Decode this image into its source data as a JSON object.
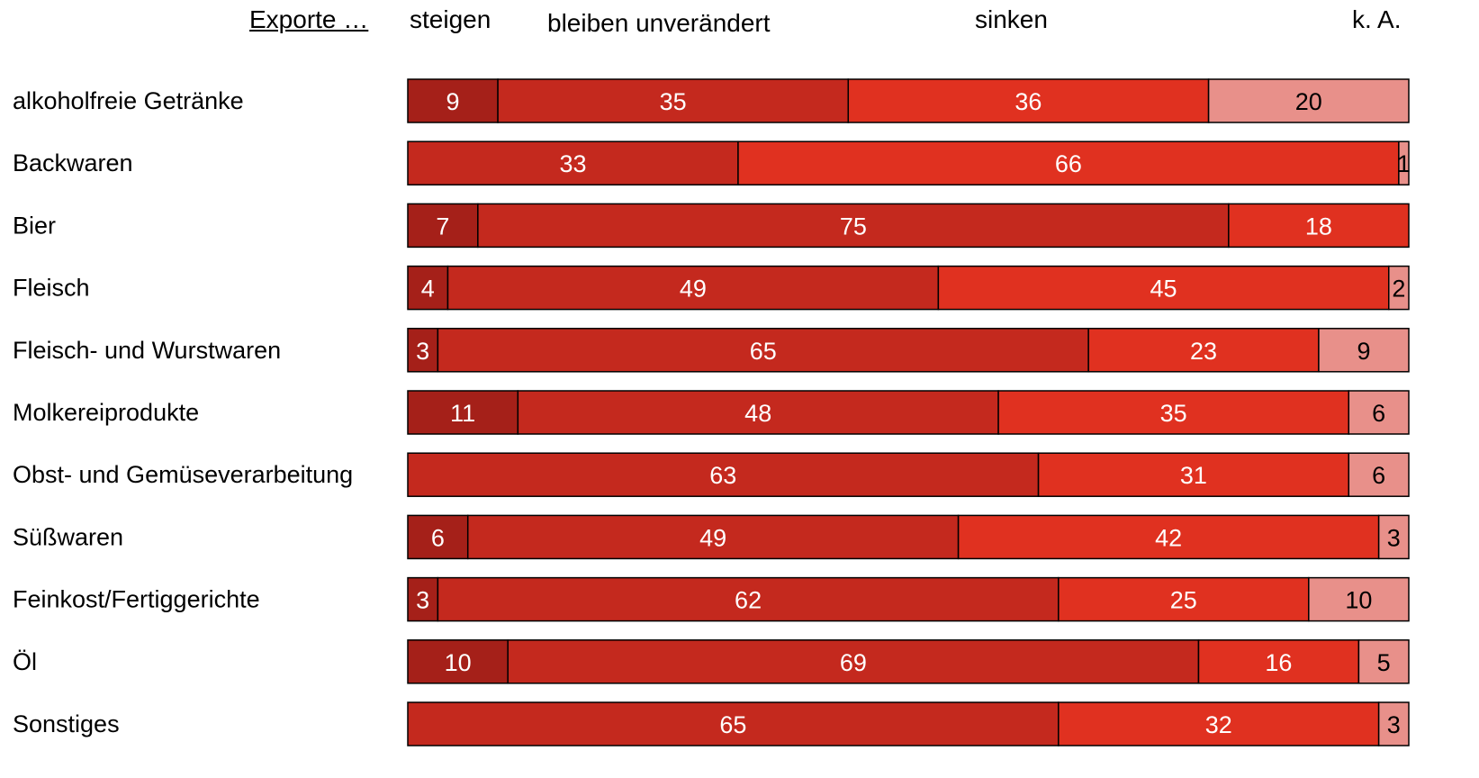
{
  "chart_data": {
    "type": "bar",
    "orientation": "horizontal",
    "stacked": true,
    "header_title": "Exporte …",
    "legend": [
      {
        "name": "steigen",
        "color": "#a52019"
      },
      {
        "name": "bleiben unverändert",
        "color": "#c4291e"
      },
      {
        "name": "sinken",
        "color": "#e03120"
      },
      {
        "name": "k. A.",
        "color": "#e8908a"
      }
    ],
    "categories": [
      "alkoholfreie Getränke",
      "Backwaren",
      "Bier",
      "Fleisch",
      "Fleisch- und Wurstwaren",
      "Molkereiprodukte",
      "Obst- und Gemüseverarbeitung",
      "Süßwaren",
      "Feinkost/Fertiggerichte",
      "Öl",
      "Sonstiges"
    ],
    "series": [
      {
        "name": "steigen",
        "values": [
          9,
          0,
          7,
          4,
          3,
          11,
          0,
          6,
          3,
          10,
          0
        ]
      },
      {
        "name": "bleiben unverändert",
        "values": [
          35,
          33,
          75,
          49,
          65,
          48,
          63,
          49,
          62,
          69,
          65
        ]
      },
      {
        "name": "sinken",
        "values": [
          36,
          66,
          18,
          45,
          23,
          35,
          31,
          42,
          25,
          16,
          32
        ]
      },
      {
        "name": "k. A.",
        "values": [
          20,
          1,
          0,
          2,
          9,
          6,
          6,
          3,
          10,
          5,
          3
        ]
      }
    ],
    "xlim": [
      0,
      100
    ],
    "grid": false
  }
}
